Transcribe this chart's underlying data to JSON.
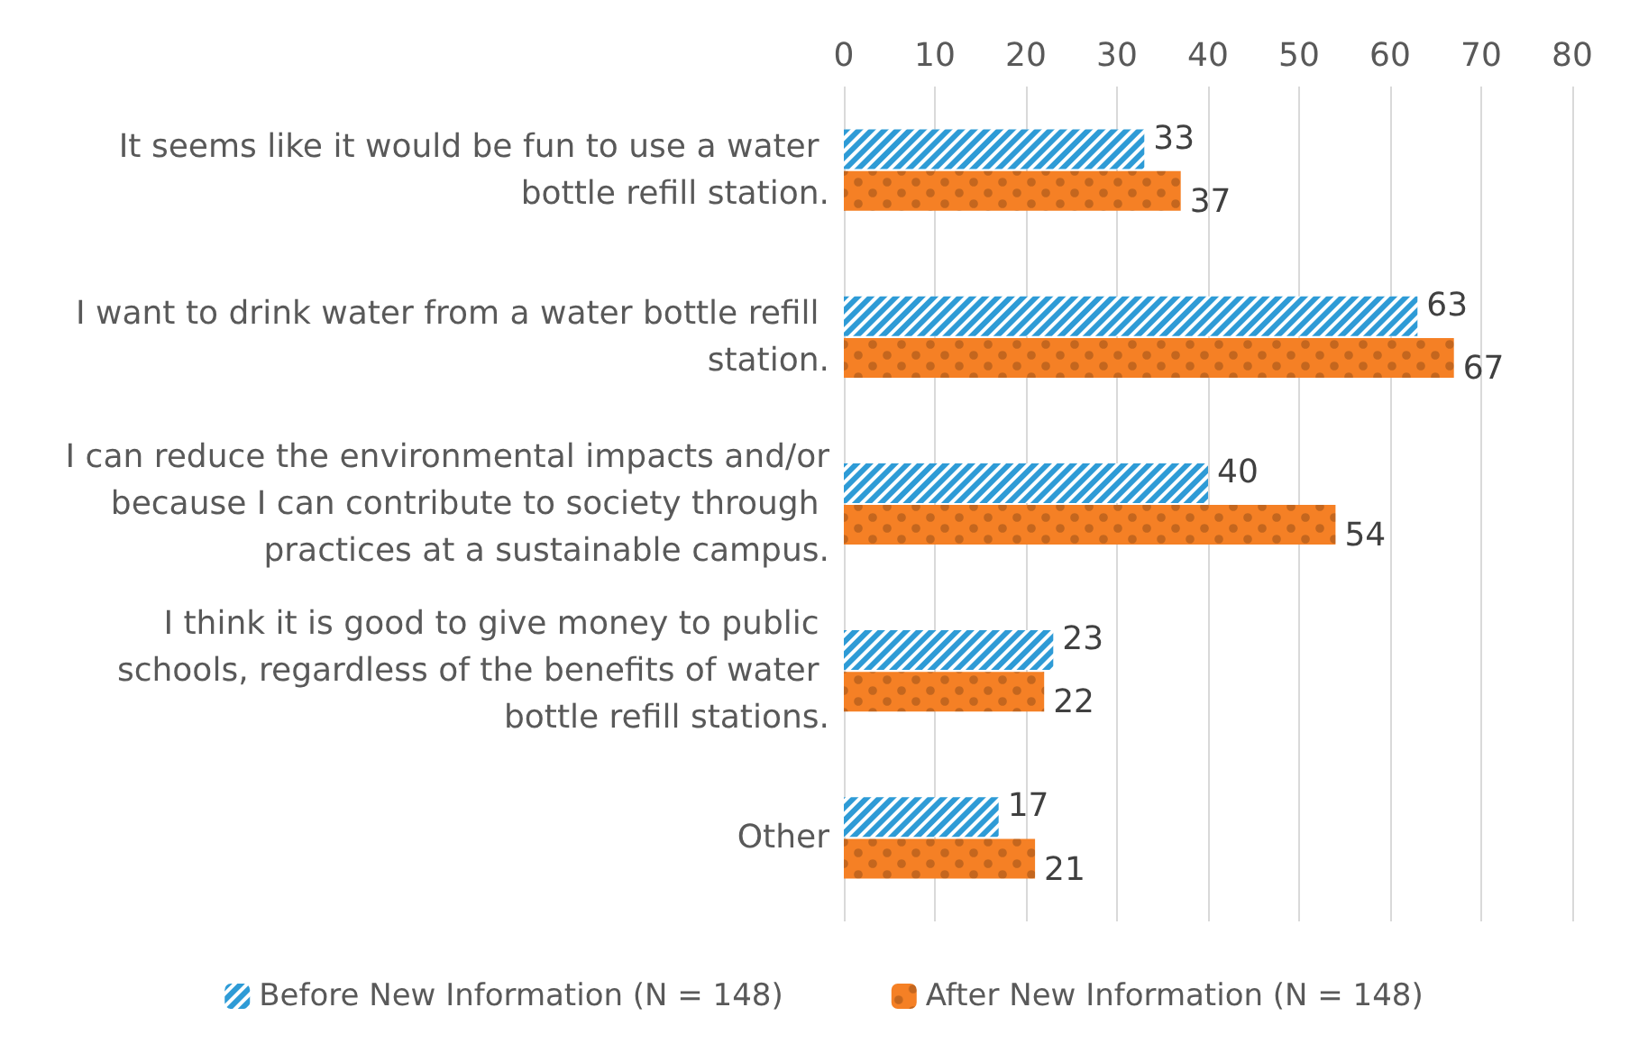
{
  "chart_data": {
    "type": "bar",
    "orientation": "horizontal",
    "categories": [
      "It seems like it would be fun to use a water bottle refill station.",
      "I want to drink water from a water bottle refill station.",
      "I can reduce the environmental impacts and/or because I can contribute to society through practices at a sustainable campus.",
      "I think it is good to give money to public schools, regardless of the benefits of water bottle refill stations.",
      "Other"
    ],
    "series": [
      {
        "name": "Before New Information (N = 148)",
        "color": "#2e9bd6",
        "values": [
          33,
          63,
          40,
          23,
          17
        ]
      },
      {
        "name": "After New Information (N = 148)",
        "color": "#f58025",
        "values": [
          37,
          67,
          54,
          22,
          21
        ]
      }
    ],
    "xlim": [
      0,
      80
    ],
    "xticks": [
      0,
      10,
      20,
      30,
      40,
      50,
      60,
      70,
      80
    ],
    "grid": "x",
    "legend": "bottom",
    "data_labels": true
  }
}
